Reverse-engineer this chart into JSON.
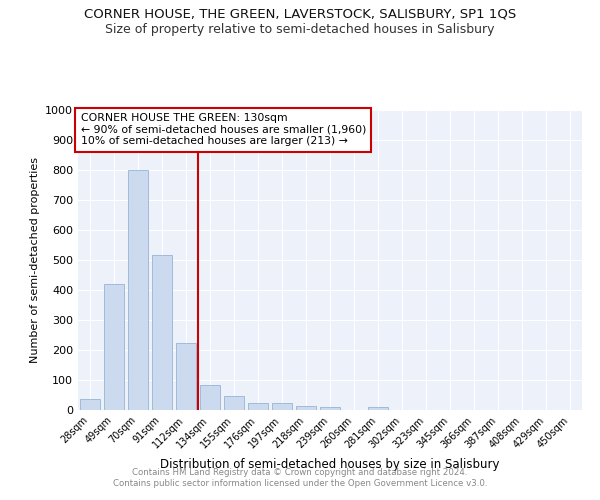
{
  "title": "CORNER HOUSE, THE GREEN, LAVERSTOCK, SALISBURY, SP1 1QS",
  "subtitle": "Size of property relative to semi-detached houses in Salisbury",
  "xlabel": "Distribution of semi-detached houses by size in Salisbury",
  "ylabel": "Number of semi-detached properties",
  "bar_labels": [
    "28sqm",
    "49sqm",
    "70sqm",
    "91sqm",
    "112sqm",
    "134sqm",
    "155sqm",
    "176sqm",
    "197sqm",
    "218sqm",
    "239sqm",
    "260sqm",
    "281sqm",
    "302sqm",
    "323sqm",
    "345sqm",
    "366sqm",
    "387sqm",
    "408sqm",
    "429sqm",
    "450sqm"
  ],
  "bar_values": [
    38,
    420,
    800,
    518,
    225,
    83,
    46,
    25,
    22,
    14,
    10,
    0,
    10,
    0,
    0,
    0,
    0,
    0,
    0,
    0,
    0
  ],
  "highlight_label": "CORNER HOUSE THE GREEN: 130sqm",
  "annotation_smaller": "← 90% of semi-detached houses are smaller (1,960)",
  "annotation_larger": "10% of semi-detached houses are larger (213) →",
  "bar_color": "#ccdaf0",
  "bar_edge_color": "#88aacc",
  "highlight_line_color": "#cc0000",
  "annotation_box_edge": "#cc0000",
  "ylim": [
    0,
    1000
  ],
  "yticks": [
    0,
    100,
    200,
    300,
    400,
    500,
    600,
    700,
    800,
    900,
    1000
  ],
  "footer_line1": "Contains HM Land Registry data © Crown copyright and database right 2024.",
  "footer_line2": "Contains public sector information licensed under the Open Government Licence v3.0.",
  "bg_color": "#edf2fa",
  "grid_color": "#ffffff",
  "fig_bg": "#ffffff",
  "title_fontsize": 9.5,
  "subtitle_fontsize": 9,
  "highlight_bar_index": 5,
  "red_line_x": 4.5
}
